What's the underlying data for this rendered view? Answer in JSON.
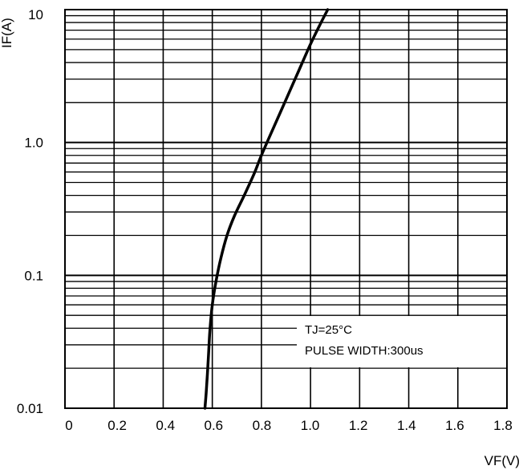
{
  "chart_data": {
    "type": "line",
    "title": "",
    "xlabel": "VF(V)",
    "ylabel": "IF(A)",
    "xscale": "linear",
    "yscale": "log",
    "xlim": [
      0,
      1.8
    ],
    "ylim": [
      0.01,
      10
    ],
    "grid": true,
    "line_color": "#000000",
    "x_ticks": [
      "0",
      "0.2",
      "0.4",
      "0.6",
      "0.8",
      "1.0",
      "1.2",
      "1.4",
      "1.6",
      "1.8"
    ],
    "y_ticks": [
      "0.01",
      "0.1",
      "1.0",
      "10"
    ],
    "series": [
      {
        "x": [
          0.57,
          0.575,
          0.58,
          0.585,
          0.59,
          0.6,
          0.615,
          0.635,
          0.66,
          0.69,
          0.73,
          0.77,
          0.8,
          0.85,
          0.9,
          0.95,
          1.0,
          1.04,
          1.07
        ],
        "y": [
          0.01,
          0.013,
          0.018,
          0.026,
          0.038,
          0.06,
          0.09,
          0.135,
          0.2,
          0.28,
          0.4,
          0.58,
          0.8,
          1.3,
          2.1,
          3.4,
          5.5,
          7.8,
          10
        ]
      }
    ],
    "annotations": [
      "TJ=25°C",
      "PULSE WIDTH:300us"
    ]
  }
}
